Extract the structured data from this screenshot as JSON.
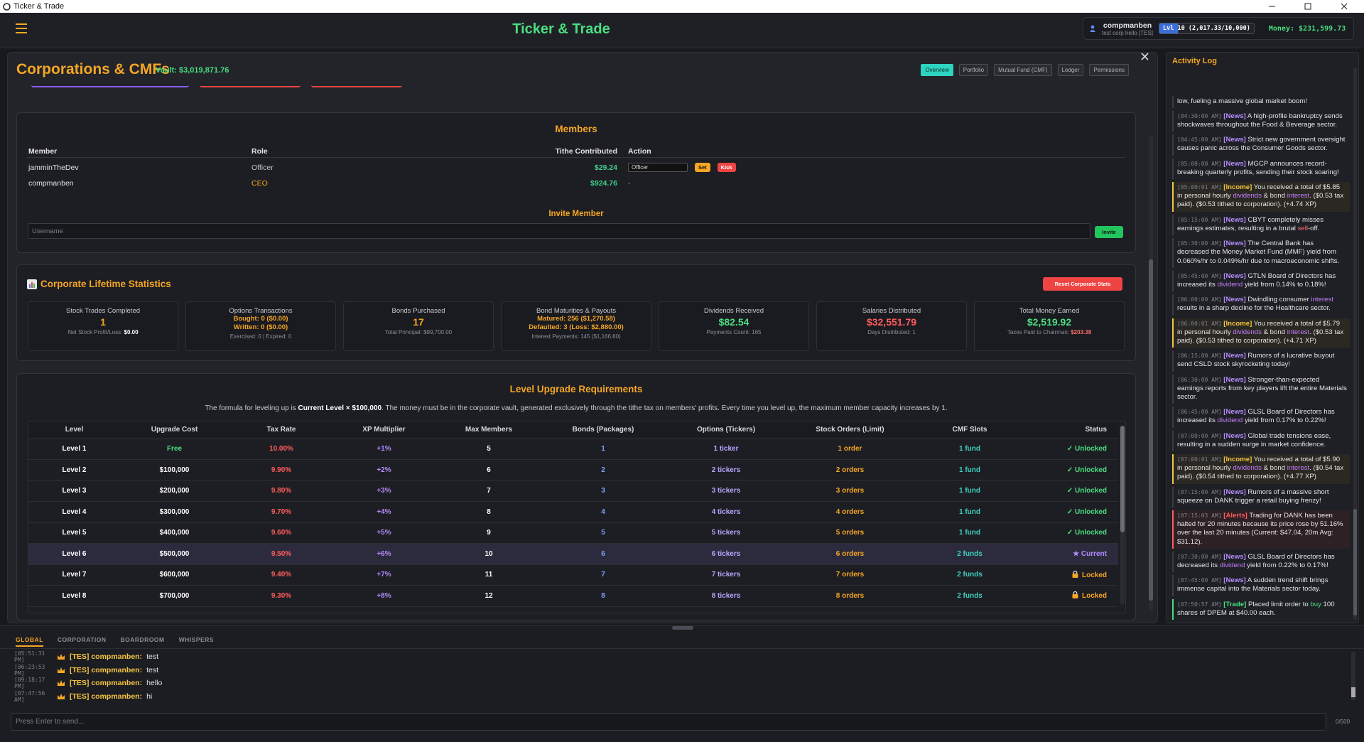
{
  "window": {
    "title": "Ticker & Trade"
  },
  "header": {
    "title": "Ticker & Trade",
    "user": {
      "name": "compmanben",
      "corp": "test corp hello [TES]",
      "level": "Lvl 10",
      "xp": "(2,017.33/10,000)",
      "money": "Money: $231,599.73"
    }
  },
  "modal": {
    "title": "Corporations & CMFs",
    "vault": "Vault: $3,019,871.76",
    "tabs": [
      "Overview",
      "Portfolio",
      "Mutual Fund (CMF)",
      "Ledger",
      "Permissions"
    ],
    "members": {
      "title": "Members",
      "columns": [
        "Member",
        "Role",
        "Tithe Contributed",
        "Action"
      ],
      "rows": [
        {
          "member": "jamminTheDev",
          "role": "Officer",
          "tithe": "$29.24",
          "select": "Officer",
          "set": "Set",
          "kick": "Kick"
        },
        {
          "member": "compmanben",
          "role": "CEO",
          "tithe": "$924.76",
          "action": "-"
        }
      ],
      "invite_title": "Invite Member",
      "invite_placeholder": "Username",
      "invite_button": "Invite"
    },
    "stats": {
      "title": "Corporate Lifetime Statistics",
      "reset": "Reset Corporate Stats",
      "cards": [
        {
          "label": "Stock Trades Completed",
          "lines": [
            "1"
          ],
          "color": "#f5a623",
          "note": [
            "Net Stock Profit/Loss: ",
            {
              "text": "$0.00",
              "color": "#ffffff"
            }
          ]
        },
        {
          "label": "Options Transactions",
          "lines": [
            "Bought: 0 ($0.00)",
            "Written: 0 ($0.00)"
          ],
          "color": "#f5a623",
          "note": [
            "Exercised: 0 | Expired: 0"
          ]
        },
        {
          "label": "Bonds Purchased",
          "lines": [
            "17"
          ],
          "color": "#f5a623",
          "note": [
            "Total Principal: $99,700.00"
          ]
        },
        {
          "label": "Bond Maturities & Payouts",
          "lines": [
            "Matured: 256 ($1,270.58)",
            "Defaulted: 3 (Loss: $2,880.00)"
          ],
          "color": "#f5a623",
          "note": [
            "Interest Payments: 145 ($1,166.80)"
          ]
        },
        {
          "label": "Dividends Received",
          "lines": [
            "$82.54"
          ],
          "color": "#4ade80",
          "note": [
            "Payments Count: 165"
          ]
        },
        {
          "label": "Salaries Distributed",
          "lines": [
            "$32,551.79"
          ],
          "color": "#ff5c5c",
          "note": [
            "Days Distributed: 1"
          ]
        },
        {
          "label": "Total Money Earned",
          "lines": [
            "$2,519.92"
          ],
          "color": "#4ade80",
          "note": [
            "Taxes Paid to Chairman: ",
            {
              "text": "$203.38",
              "color": "#ff6b6b"
            }
          ]
        }
      ]
    },
    "levels": {
      "title": "Level Upgrade Requirements",
      "description": [
        "The formula for leveling up is ",
        {
          "text": "Current Level × $100,000",
          "color": "#ffffff"
        },
        ". The money must be in the corporate vault, generated exclusively through the tithe tax on members' profits. Every time you level up, the maximum member capacity increases by 1."
      ],
      "columns": [
        "Level",
        "Upgrade Cost",
        "Tax Rate",
        "XP Multiplier",
        "Max Members",
        "Bonds (Packages)",
        "Options (Tickers)",
        "Stock Orders (Limit)",
        "CMF Slots",
        "Status"
      ],
      "column_colors": [
        "#ffffff",
        "#ffffff",
        "#ff5c5c",
        "#b48cff",
        "#ffffff",
        "#7ea2ff",
        "#b9a6ff",
        "#f5a623",
        "#3ecfbf",
        "#4ade80"
      ],
      "highlight_row": 5,
      "rows": [
        [
          "Level 1",
          "Free",
          "10.00%",
          "+1%",
          "5",
          "1",
          "1 ticker",
          "1 order",
          "1 fund",
          "✓ Unlocked"
        ],
        [
          "Level 2",
          "$100,000",
          "9.90%",
          "+2%",
          "6",
          "2",
          "2 tickers",
          "2 orders",
          "1 fund",
          "✓ Unlocked"
        ],
        [
          "Level 3",
          "$200,000",
          "9.80%",
          "+3%",
          "7",
          "3",
          "3 tickers",
          "3 orders",
          "1 fund",
          "✓ Unlocked"
        ],
        [
          "Level 4",
          "$300,000",
          "9.70%",
          "+4%",
          "8",
          "4",
          "4 tickers",
          "4 orders",
          "1 fund",
          "✓ Unlocked"
        ],
        [
          "Level 5",
          "$400,000",
          "9.60%",
          "+5%",
          "9",
          "5",
          "5 tickers",
          "5 orders",
          "1 fund",
          "✓ Unlocked"
        ],
        [
          "Level 6",
          "$500,000",
          "9.50%",
          "+6%",
          "10",
          "6",
          "6 tickers",
          "6 orders",
          "2 funds",
          "★ Current"
        ],
        [
          "Level 7",
          "$600,000",
          "9.40%",
          "+7%",
          "11",
          "7",
          "7 tickers",
          "7 orders",
          "2 funds",
          "Locked"
        ],
        [
          "Level 8",
          "$700,000",
          "9.30%",
          "+8%",
          "12",
          "8",
          "8 tickers",
          "8 orders",
          "2 funds",
          "Locked"
        ]
      ]
    }
  },
  "activity_log": {
    "title": "Activity Log",
    "entries": [
      {
        "text": [
          "low, fueling a massive global market boom!"
        ]
      },
      {
        "time": "[04:30:00 AM]",
        "tag": "[News]",
        "color": "#b48cff",
        "text": [
          "A high-profile bankruptcy sends shockwaves throughout the Food & Beverage sector."
        ]
      },
      {
        "time": "[04:45:00 AM]",
        "tag": "[News]",
        "color": "#b48cff",
        "text": [
          "Strict new government oversight causes panic across the Consumer Goods sector."
        ]
      },
      {
        "time": "[05:00:00 AM]",
        "tag": "[News]",
        "color": "#b48cff",
        "text": [
          "MGCP announces record-breaking quarterly profits, sending their stock soaring!"
        ]
      },
      {
        "time": "[05:00:01 AM]",
        "tag": "[Income]",
        "color": "#f5c542",
        "text": [
          "You received a total of $5.85 in personal hourly ",
          {
            "text": "dividends",
            "color": "#c77dff"
          },
          " & bond ",
          {
            "text": "interest",
            "color": "#c77dff"
          },
          ". ($0.53 tax paid). ($0.53 tithed to corporation). (+4.74 XP)"
        ]
      },
      {
        "time": "[05:15:00 AM]",
        "tag": "[News]",
        "color": "#b48cff",
        "text": [
          "CBYT completely misses earnings estimates, resulting in a brutal ",
          {
            "text": "sell",
            "color": "#ff6b6b"
          },
          "-off."
        ]
      },
      {
        "time": "[05:30:00 AM]",
        "tag": "[News]",
        "color": "#b48cff",
        "text": [
          "The Central Bank has decreased the Money Market Fund (MMF) yield from 0.060%/hr to 0.049%/hr due to macroeconomic shifts."
        ]
      },
      {
        "time": "[05:45:00 AM]",
        "tag": "[News]",
        "color": "#b48cff",
        "text": [
          "GTLN Board of Directors has increased its ",
          {
            "text": "dividend",
            "color": "#c77dff"
          },
          " yield from 0.14% to 0.18%!"
        ]
      },
      {
        "time": "[06:00:00 AM]",
        "tag": "[News]",
        "color": "#b48cff",
        "text": [
          "Dwindling consumer ",
          {
            "text": "interest",
            "color": "#c77dff"
          },
          " results in a sharp decline for the Healthcare sector."
        ]
      },
      {
        "time": "[06:00:01 AM]",
        "tag": "[Income]",
        "color": "#f5c542",
        "text": [
          "You received a total of $5.79 in personal hourly ",
          {
            "text": "dividends",
            "color": "#c77dff"
          },
          " & bond ",
          {
            "text": "interest",
            "color": "#c77dff"
          },
          ". ($0.53 tax paid). ($0.53 tithed to corporation). (+4.71 XP)"
        ]
      },
      {
        "time": "[06:15:00 AM]",
        "tag": "[News]",
        "color": "#b48cff",
        "text": [
          "Rumors of a lucrative buyout send CSLD stock skyrocketing today!"
        ]
      },
      {
        "time": "[06:30:00 AM]",
        "tag": "[News]",
        "color": "#b48cff",
        "text": [
          "Stronger-than-expected earnings reports from key players lift the entire Materials sector."
        ]
      },
      {
        "time": "[06:45:00 AM]",
        "tag": "[News]",
        "color": "#b48cff",
        "text": [
          "GLSL Board of Directors has increased its ",
          {
            "text": "dividend",
            "color": "#c77dff"
          },
          " yield from 0.17% to 0.22%!"
        ]
      },
      {
        "time": "[07:00:00 AM]",
        "tag": "[News]",
        "color": "#b48cff",
        "text": [
          "Global trade tensions ease, resulting in a sudden surge in market confidence."
        ]
      },
      {
        "time": "[07:00:01 AM]",
        "tag": "[Income]",
        "color": "#f5c542",
        "text": [
          "You received a total of $5.90 in personal hourly ",
          {
            "text": "dividends",
            "color": "#c77dff"
          },
          " & bond ",
          {
            "text": "interest",
            "color": "#c77dff"
          },
          ". ($0.54 tax paid). ($0.54 tithed to corporation). (+4.77 XP)"
        ]
      },
      {
        "time": "[07:15:00 AM]",
        "tag": "[News]",
        "color": "#b48cff",
        "text": [
          "Rumors of a massive short squeeze on DANK trigger a retail buying frenzy!"
        ]
      },
      {
        "time": "[07:15:03 AM]",
        "tag": "[Alerts]",
        "color": "#ff5c5c",
        "text": [
          "Trading for DANK has been halted for 20 minutes because its price rose by 51.16% over the last 20 minutes (Current: $47.04, 20m Avg: $31.12)."
        ]
      },
      {
        "time": "[07:30:00 AM]",
        "tag": "[News]",
        "color": "#b48cff",
        "text": [
          "GLSL Board of Directors has decreased its ",
          {
            "text": "dividend",
            "color": "#c77dff"
          },
          " yield from 0.22% to 0.17%!"
        ]
      },
      {
        "time": "[07:45:00 AM]",
        "tag": "[News]",
        "color": "#b48cff",
        "text": [
          "A sudden trend shift brings immense capital into the Materials sector today."
        ]
      },
      {
        "time": "[07:50:57 AM]",
        "tag": "[Trade]",
        "color": "#4ade80",
        "text": [
          "Placed limit order to ",
          {
            "text": "buy",
            "color": "#4ade80"
          },
          " 100 shares of DPEM at $40.00 each."
        ]
      }
    ]
  },
  "chat": {
    "tabs": [
      "GLOBAL",
      "CORPORATION",
      "BOARDROOM",
      "WHISPERS"
    ],
    "messages": [
      {
        "time": "[05:51:31 PM]",
        "user": "[TES] compmanben:",
        "text": "test"
      },
      {
        "time": "[06:23:53 PM]",
        "user": "[TES] compmanben:",
        "text": "test"
      },
      {
        "time": "[09:18:17 PM]",
        "user": "[TES] compmanben:",
        "text": "hello"
      },
      {
        "time": "[07:47:56 AM]",
        "user": "[TES] compmanben:",
        "text": "hi"
      }
    ],
    "placeholder": "Press Enter to send...",
    "counter": "0/500"
  }
}
